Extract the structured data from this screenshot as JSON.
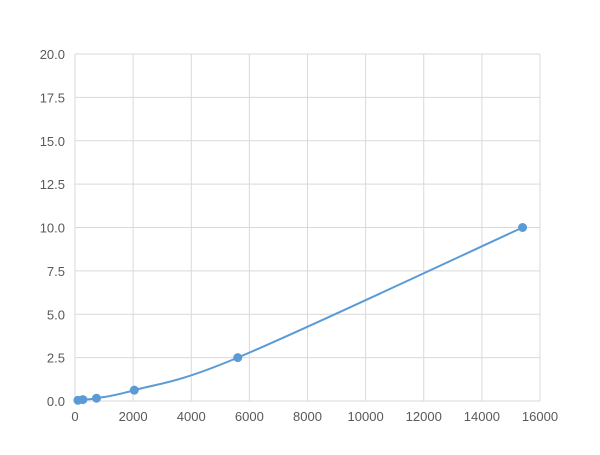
{
  "chart_data": {
    "type": "scatter",
    "xlim": [
      0,
      16000
    ],
    "ylim": [
      0,
      20
    ],
    "xticks": [
      "0",
      "2000",
      "4000",
      "6000",
      "8000",
      "10000",
      "12000",
      "14000",
      "16000"
    ],
    "yticks": [
      "0.0",
      "2.5",
      "5.0",
      "7.5",
      "10.0",
      "12.5",
      "15.0",
      "17.5",
      "20.0"
    ],
    "grid": true,
    "line_color": "#5b9bd5",
    "series": [
      {
        "x": [
          100,
          270,
          740,
          2040,
          5600,
          15400
        ],
        "y": [
          0.04,
          0.08,
          0.16,
          0.625,
          2.5,
          10
        ]
      }
    ]
  }
}
